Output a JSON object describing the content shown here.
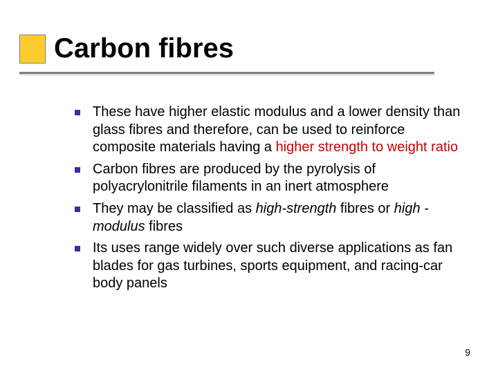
{
  "slide": {
    "title": "Carbon fibres",
    "accent_color": "#ffcc2f",
    "underline_color": "#808080",
    "bullet_color": "#333399",
    "highlight_color": "#cc0000",
    "title_fontsize": 40,
    "body_fontsize": 20,
    "background_color": "#ffffff",
    "page_number": "9",
    "bullets": [
      {
        "segments": [
          {
            "text": "These have higher elastic modulus and a lower density than glass fibres and therefore, can be used to reinforce composite materials having a ",
            "style": ""
          },
          {
            "text": "higher strength to weight ratio",
            "style": "hl"
          }
        ]
      },
      {
        "segments": [
          {
            "text": "Carbon fibres are produced by the pyrolysis of polyacrylonitrile filaments in an inert atmosphere",
            "style": ""
          }
        ]
      },
      {
        "segments": [
          {
            "text": "They may be classified as ",
            "style": ""
          },
          {
            "text": "high‑strength",
            "style": "it"
          },
          {
            "text": " fibres or ",
            "style": ""
          },
          {
            "text": "high -modulus ",
            "style": "it"
          },
          {
            "text": "fibres",
            "style": ""
          }
        ]
      },
      {
        "segments": [
          {
            "text": "Its uses range widely over such diverse applications as fan blades for gas turbines, sports equipment, and racing‑car body panels",
            "style": ""
          }
        ]
      }
    ]
  }
}
